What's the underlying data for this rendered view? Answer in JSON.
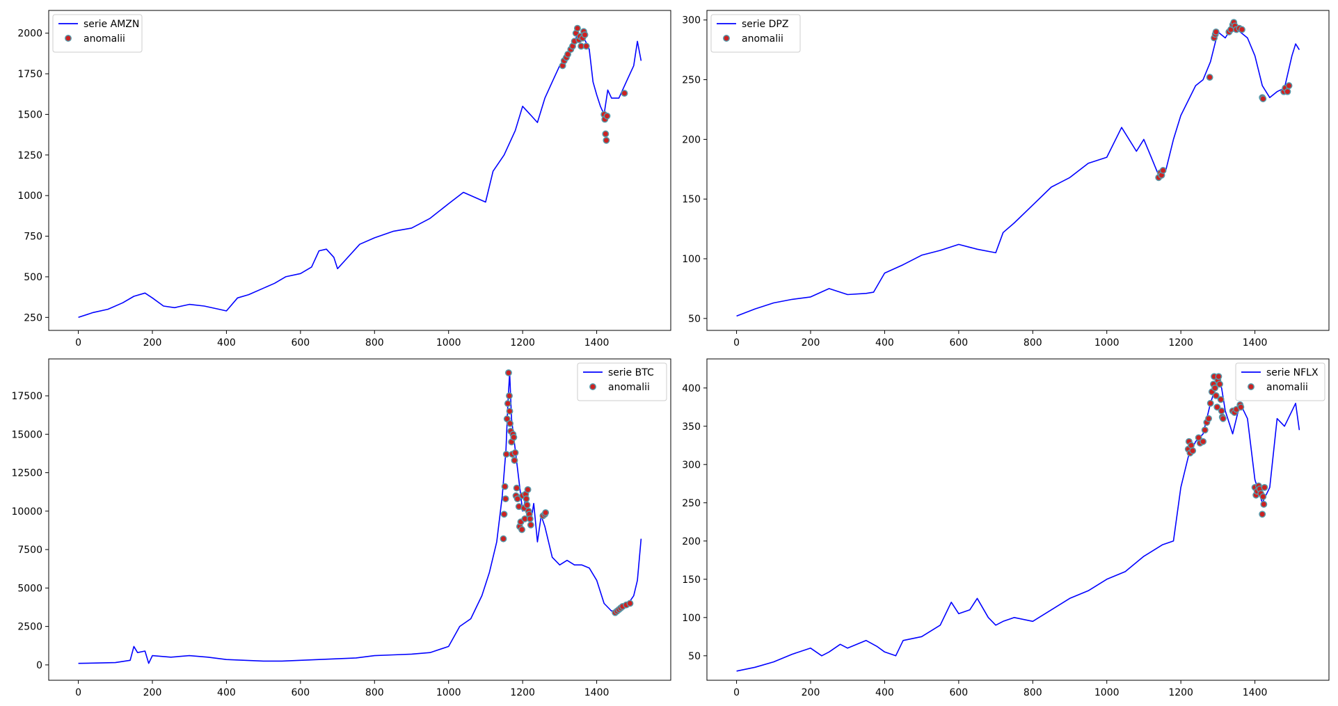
{
  "chart_data": [
    {
      "type": "line",
      "legend_placement": "upper-left",
      "xlim": [
        -80,
        1600
      ],
      "ylim": [
        170,
        2140
      ],
      "xticks": [
        0,
        200,
        400,
        600,
        800,
        1000,
        1200,
        1400
      ],
      "yticks": [
        250,
        500,
        750,
        1000,
        1250,
        1500,
        1750,
        2000
      ],
      "series": [
        {
          "name": "serie AMZN",
          "kind": "line",
          "color": "#0000ff",
          "x": [
            0,
            40,
            80,
            120,
            150,
            180,
            200,
            230,
            260,
            300,
            340,
            380,
            400,
            430,
            460,
            500,
            530,
            560,
            600,
            630,
            650,
            670,
            690,
            700,
            720,
            760,
            800,
            850,
            900,
            950,
            1000,
            1040,
            1080,
            1100,
            1120,
            1150,
            1180,
            1200,
            1220,
            1240,
            1260,
            1280,
            1300,
            1320,
            1340,
            1350,
            1360,
            1370,
            1380,
            1390,
            1400,
            1410,
            1420,
            1430,
            1440,
            1460,
            1480,
            1500,
            1510,
            1520
          ],
          "y": [
            250,
            280,
            300,
            340,
            380,
            400,
            370,
            320,
            310,
            330,
            320,
            300,
            290,
            370,
            390,
            430,
            460,
            500,
            520,
            560,
            660,
            670,
            620,
            550,
            600,
            700,
            740,
            780,
            800,
            860,
            950,
            1020,
            980,
            960,
            1150,
            1250,
            1400,
            1550,
            1500,
            1450,
            1600,
            1700,
            1800,
            1850,
            1950,
            2000,
            1980,
            1950,
            1900,
            1700,
            1620,
            1550,
            1500,
            1650,
            1600,
            1600,
            1700,
            1800,
            1950,
            1830
          ]
        },
        {
          "name": "anomalii",
          "kind": "scatter",
          "color": "#cc2222",
          "edge": "#5599aa",
          "x": [
            1308,
            1312,
            1318,
            1322,
            1330,
            1335,
            1340,
            1344,
            1348,
            1352,
            1355,
            1358,
            1362,
            1365,
            1368,
            1372,
            1420,
            1422,
            1424,
            1426,
            1428,
            1475
          ],
          "y": [
            1800,
            1830,
            1850,
            1870,
            1900,
            1920,
            1950,
            2000,
            2030,
            1960,
            1980,
            1920,
            1970,
            2010,
            1990,
            1920,
            1500,
            1470,
            1380,
            1340,
            1490,
            1630
          ]
        }
      ]
    },
    {
      "type": "line",
      "legend_placement": "upper-left",
      "xlim": [
        -80,
        1600
      ],
      "ylim": [
        40,
        308
      ],
      "xticks": [
        0,
        200,
        400,
        600,
        800,
        1000,
        1200,
        1400
      ],
      "yticks": [
        50,
        100,
        150,
        200,
        250,
        300
      ],
      "series": [
        {
          "name": "serie DPZ",
          "kind": "line",
          "color": "#0000ff",
          "x": [
            0,
            50,
            100,
            150,
            200,
            250,
            300,
            350,
            370,
            400,
            450,
            500,
            550,
            600,
            650,
            700,
            720,
            750,
            800,
            850,
            900,
            950,
            1000,
            1040,
            1080,
            1100,
            1120,
            1140,
            1160,
            1180,
            1200,
            1240,
            1260,
            1280,
            1300,
            1320,
            1340,
            1360,
            1380,
            1400,
            1420,
            1440,
            1460,
            1480,
            1500,
            1510,
            1520
          ],
          "y": [
            52,
            58,
            63,
            66,
            68,
            75,
            70,
            71,
            72,
            88,
            95,
            103,
            107,
            112,
            108,
            105,
            122,
            130,
            145,
            160,
            168,
            180,
            185,
            210,
            190,
            200,
            185,
            170,
            175,
            200,
            220,
            245,
            250,
            265,
            290,
            285,
            295,
            290,
            285,
            270,
            245,
            235,
            240,
            243,
            270,
            280,
            275
          ]
        },
        {
          "name": "anomalii",
          "kind": "scatter",
          "color": "#cc2222",
          "edge": "#5599aa",
          "x": [
            1140,
            1145,
            1148,
            1152,
            1278,
            1290,
            1293,
            1295,
            1330,
            1335,
            1340,
            1343,
            1346,
            1350,
            1358,
            1365,
            1420,
            1422,
            1478,
            1482,
            1488,
            1492
          ],
          "y": [
            168,
            172,
            170,
            174,
            252,
            285,
            288,
            290,
            290,
            292,
            296,
            298,
            295,
            292,
            293,
            292,
            235,
            234,
            240,
            243,
            240,
            245
          ]
        }
      ]
    },
    {
      "type": "line",
      "legend_placement": "upper-right",
      "xlim": [
        -80,
        1600
      ],
      "ylim": [
        -1000,
        19900
      ],
      "xticks": [
        0,
        200,
        400,
        600,
        800,
        1000,
        1200,
        1400
      ],
      "yticks": [
        0,
        2500,
        5000,
        7500,
        10000,
        12500,
        15000,
        17500
      ],
      "series": [
        {
          "name": "serie BTC",
          "kind": "line",
          "color": "#0000ff",
          "x": [
            0,
            50,
            100,
            140,
            150,
            160,
            180,
            190,
            200,
            250,
            300,
            350,
            400,
            450,
            500,
            550,
            600,
            650,
            700,
            750,
            800,
            850,
            900,
            950,
            1000,
            1030,
            1060,
            1090,
            1110,
            1130,
            1145,
            1155,
            1160,
            1165,
            1170,
            1180,
            1190,
            1200,
            1210,
            1220,
            1230,
            1240,
            1250,
            1260,
            1280,
            1300,
            1320,
            1340,
            1360,
            1380,
            1400,
            1420,
            1440,
            1460,
            1480,
            1500,
            1510,
            1520
          ],
          "y": [
            100,
            120,
            150,
            300,
            1200,
            800,
            900,
            100,
            600,
            500,
            600,
            500,
            350,
            300,
            250,
            250,
            300,
            350,
            400,
            450,
            600,
            650,
            700,
            800,
            1200,
            2500,
            3000,
            4500,
            6000,
            8000,
            11000,
            14000,
            17000,
            19000,
            16000,
            14000,
            12000,
            10000,
            11000,
            9000,
            10500,
            8000,
            9700,
            9000,
            7000,
            6500,
            6800,
            6500,
            6500,
            6300,
            5500,
            4000,
            3500,
            3600,
            3800,
            4500,
            5500,
            8200
          ]
        },
        {
          "name": "anomalii",
          "kind": "scatter",
          "color": "#cc2222",
          "edge": "#5599aa",
          "x": [
            1148,
            1150,
            1152,
            1154,
            1156,
            1158,
            1160,
            1162,
            1164,
            1165,
            1166,
            1168,
            1170,
            1172,
            1174,
            1176,
            1178,
            1180,
            1182,
            1184,
            1186,
            1190,
            1192,
            1195,
            1198,
            1200,
            1204,
            1206,
            1208,
            1210,
            1212,
            1214,
            1216,
            1218,
            1220,
            1222,
            1255,
            1260,
            1262,
            1450,
            1455,
            1460,
            1465,
            1470,
            1480,
            1490
          ],
          "y": [
            8200,
            9800,
            11600,
            10800,
            13700,
            16000,
            17000,
            19000,
            17500,
            16500,
            15700,
            15200,
            14500,
            13700,
            15000,
            14800,
            13300,
            13800,
            11000,
            11500,
            10800,
            10300,
            9000,
            9300,
            8800,
            11000,
            10200,
            9500,
            11100,
            10800,
            10400,
            11400,
            10000,
            9800,
            9500,
            9100,
            9700,
            9800,
            9900,
            3400,
            3500,
            3600,
            3700,
            3800,
            3900,
            4000
          ]
        }
      ]
    },
    {
      "type": "line",
      "legend_placement": "upper-right",
      "xlim": [
        -80,
        1600
      ],
      "ylim": [
        18,
        438
      ],
      "xticks": [
        0,
        200,
        400,
        600,
        800,
        1000,
        1200,
        1400
      ],
      "yticks": [
        50,
        100,
        150,
        200,
        250,
        300,
        350,
        400
      ],
      "series": [
        {
          "name": "serie NFLX",
          "kind": "line",
          "color": "#0000ff",
          "x": [
            0,
            50,
            100,
            150,
            200,
            230,
            250,
            280,
            300,
            350,
            380,
            400,
            430,
            450,
            500,
            550,
            580,
            600,
            630,
            650,
            680,
            700,
            720,
            750,
            800,
            850,
            900,
            950,
            1000,
            1050,
            1100,
            1150,
            1180,
            1200,
            1220,
            1240,
            1260,
            1280,
            1300,
            1310,
            1320,
            1340,
            1360,
            1380,
            1400,
            1420,
            1440,
            1460,
            1480,
            1500,
            1510,
            1520
          ],
          "y": [
            30,
            35,
            42,
            52,
            60,
            50,
            55,
            65,
            60,
            70,
            62,
            55,
            50,
            70,
            75,
            90,
            120,
            105,
            110,
            125,
            100,
            90,
            95,
            100,
            95,
            110,
            125,
            135,
            150,
            160,
            180,
            195,
            200,
            270,
            310,
            330,
            340,
            380,
            410,
            400,
            370,
            340,
            380,
            360,
            280,
            250,
            270,
            360,
            350,
            370,
            380,
            345
          ]
        },
        {
          "name": "anomalii",
          "kind": "scatter",
          "color": "#cc2222",
          "edge": "#5599aa",
          "x": [
            1220,
            1222,
            1225,
            1228,
            1232,
            1248,
            1252,
            1260,
            1265,
            1270,
            1275,
            1280,
            1284,
            1288,
            1290,
            1292,
            1295,
            1298,
            1300,
            1302,
            1305,
            1308,
            1310,
            1312,
            1314,
            1340,
            1345,
            1350,
            1360,
            1362,
            1400,
            1403,
            1406,
            1410,
            1413,
            1416,
            1420,
            1422,
            1424,
            1426
          ],
          "y": [
            320,
            330,
            315,
            325,
            318,
            335,
            328,
            330,
            345,
            355,
            360,
            380,
            395,
            405,
            415,
            400,
            390,
            375,
            410,
            415,
            405,
            385,
            370,
            362,
            360,
            370,
            368,
            372,
            378,
            375,
            270,
            260,
            265,
            272,
            268,
            262,
            235,
            258,
            248,
            270
          ]
        }
      ]
    }
  ]
}
